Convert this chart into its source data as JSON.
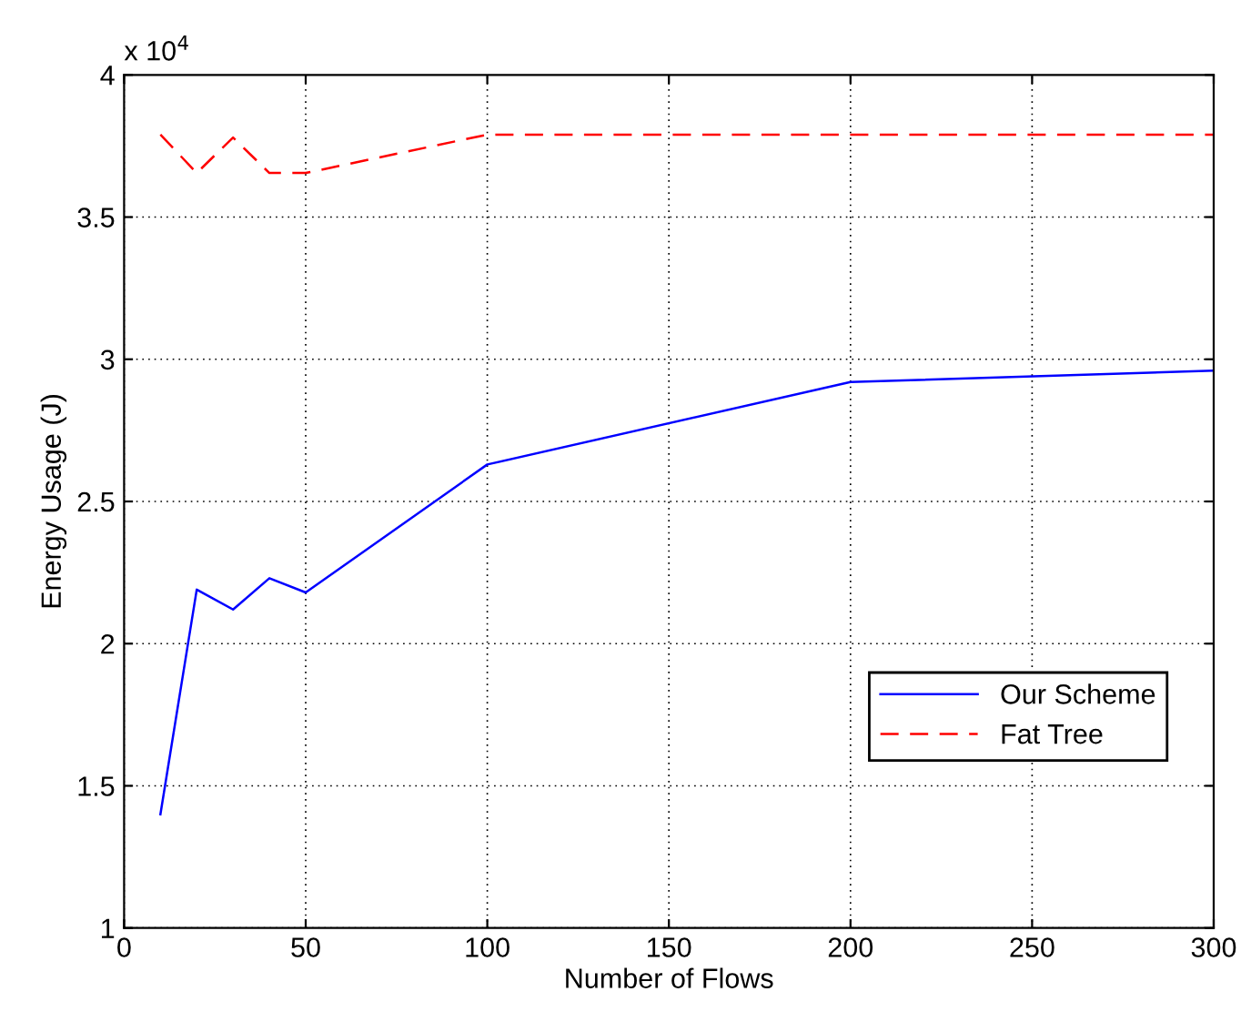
{
  "chart_data": {
    "type": "line",
    "xlabel": "Number of Flows",
    "ylabel": "Energy Usage (J)",
    "annotations": [
      "x 10$^{4}$"
    ],
    "x": [
      10,
      20,
      30,
      40,
      50,
      100,
      200,
      300
    ],
    "series": [
      {
        "name": "Our Scheme",
        "color": "#0000ff",
        "line_style": "solid",
        "values": [
          1.4,
          2.19,
          2.12,
          2.23,
          2.18,
          2.63,
          2.92,
          2.96
        ]
      },
      {
        "name": "Fat Tree",
        "color": "#ff0000",
        "line_style": "dashed",
        "values": [
          3.79,
          3.655,
          3.78,
          3.655,
          3.655,
          3.79,
          3.79,
          3.79
        ]
      }
    ],
    "xlim": [
      0,
      300
    ],
    "xticks": [
      0,
      50,
      100,
      150,
      200,
      250,
      300
    ],
    "ylim": [
      1,
      4
    ],
    "yticks": [
      1,
      1.5,
      2,
      2.5,
      3,
      3.5,
      4
    ],
    "grid": true,
    "legend": "lower right"
  }
}
